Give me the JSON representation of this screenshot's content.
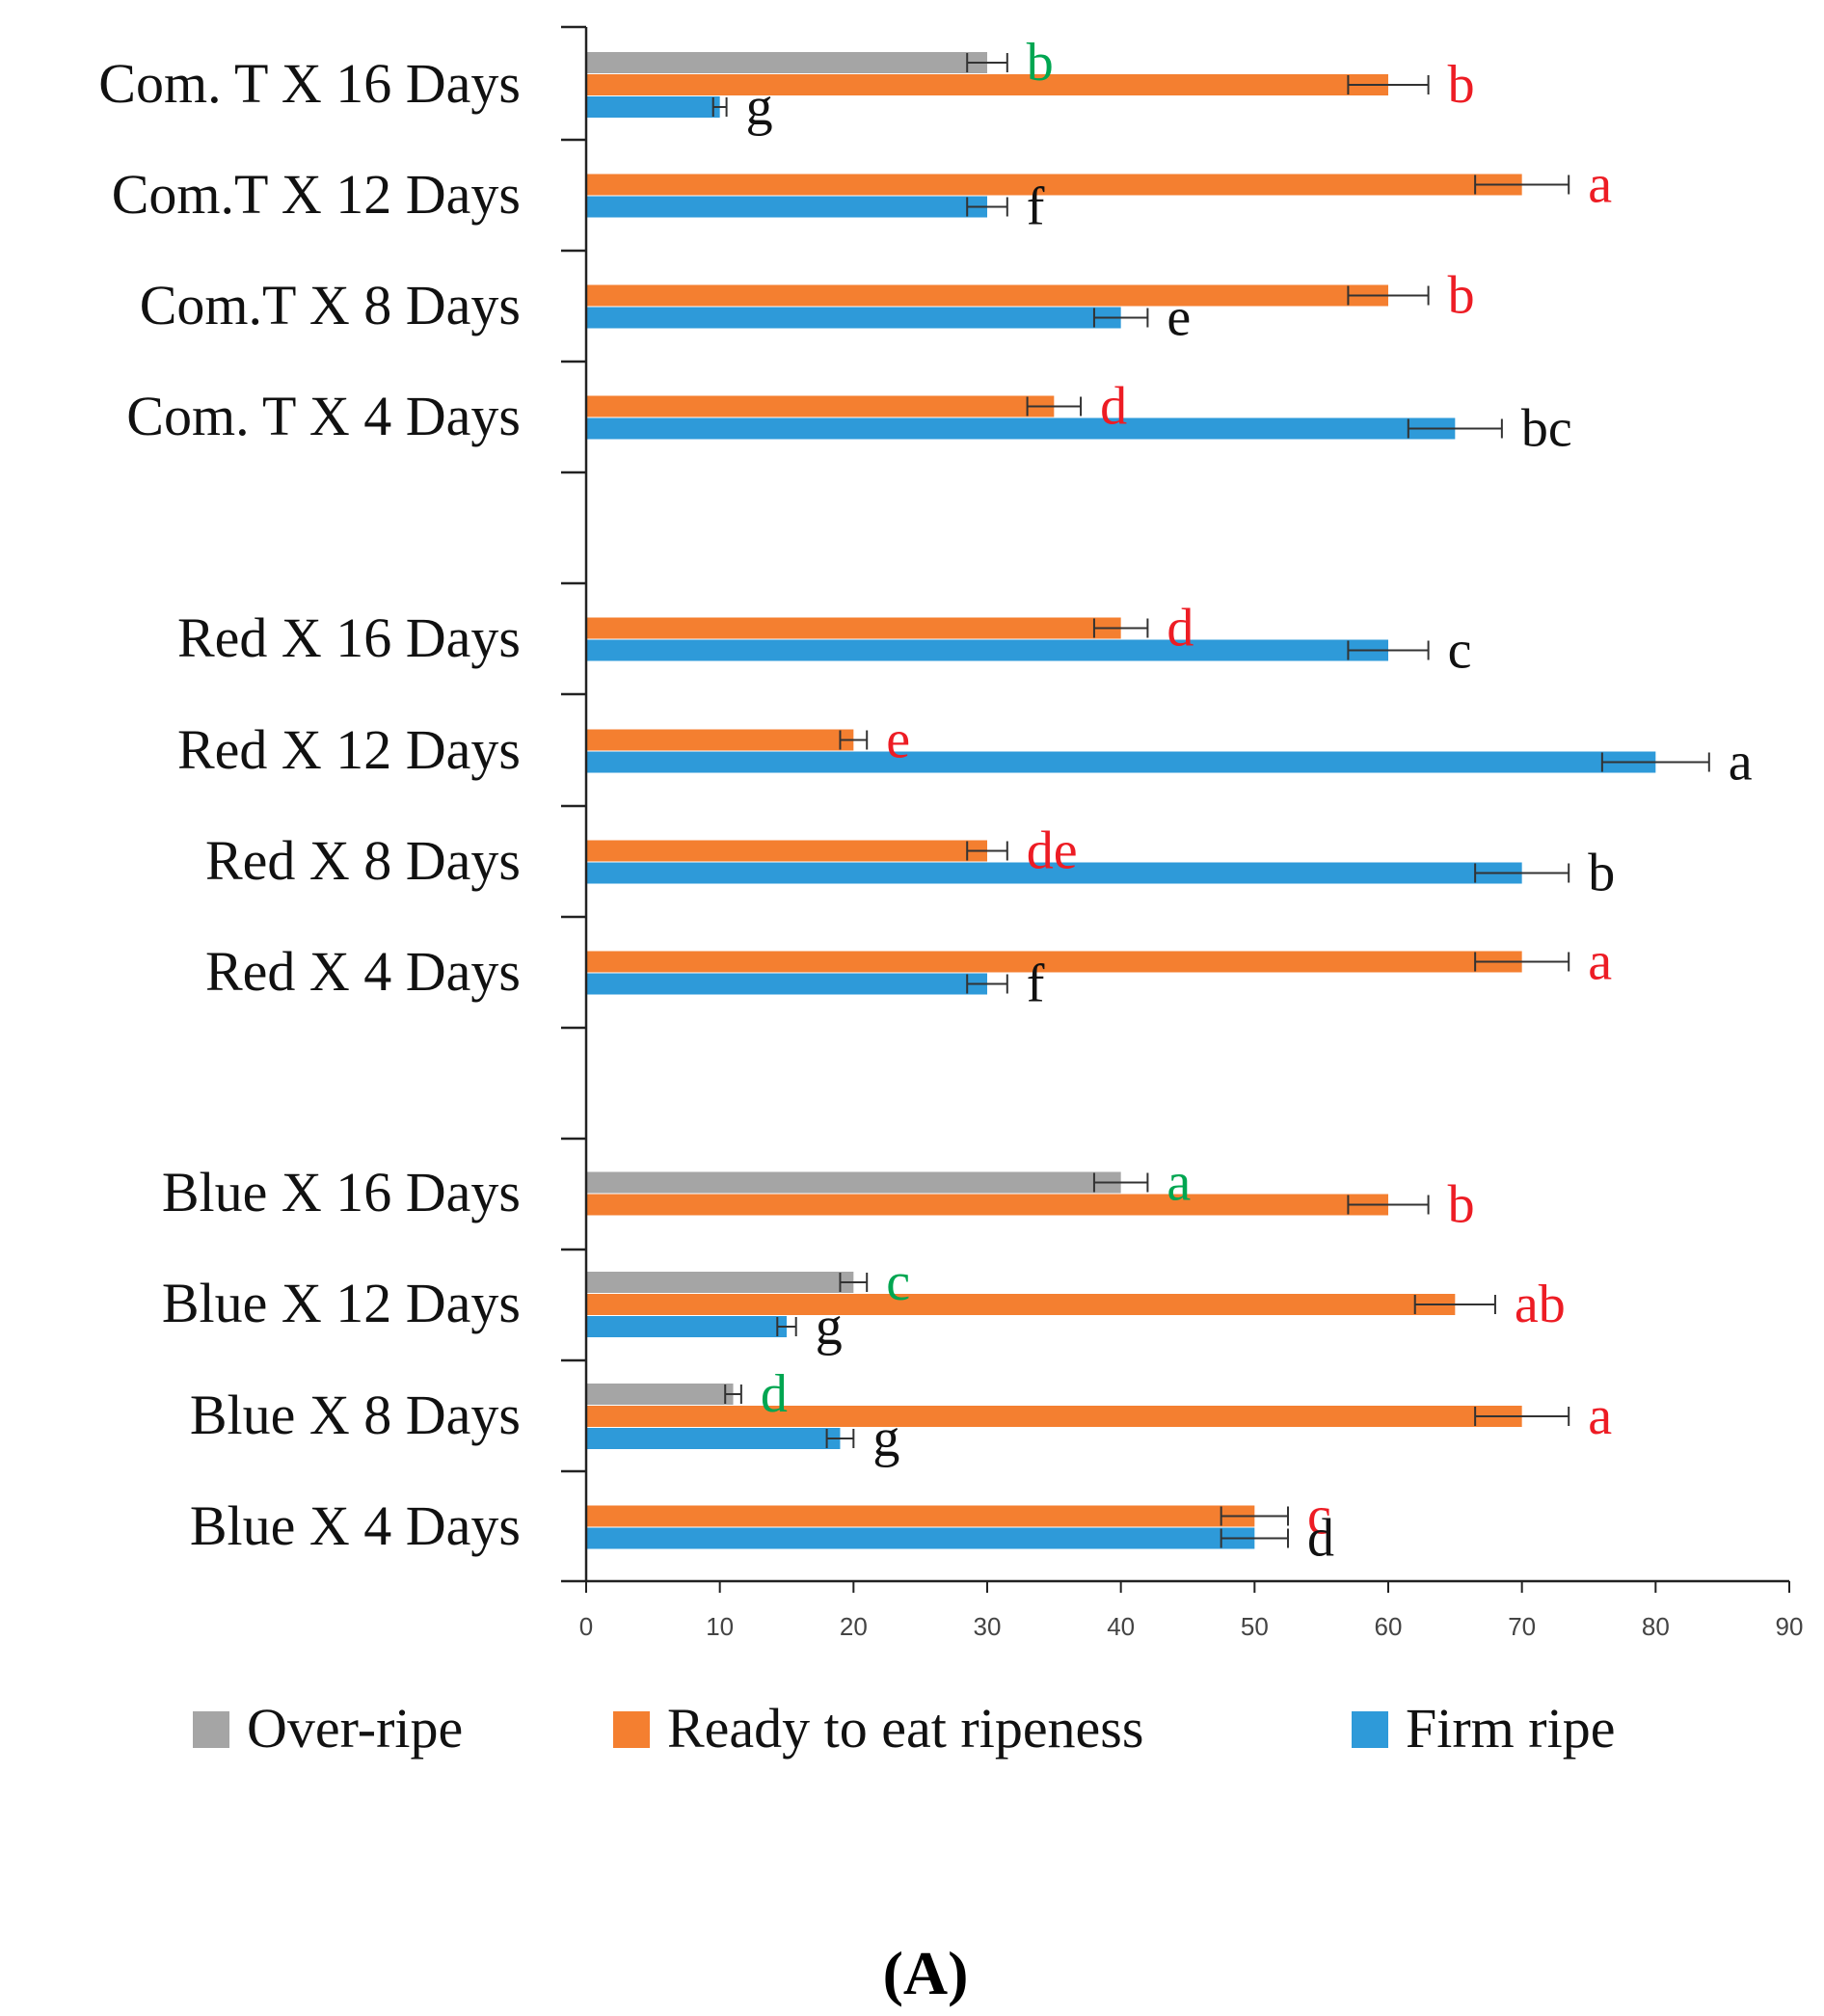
{
  "chart_data": {
    "type": "bar",
    "orientation": "horizontal",
    "categories": [
      "Com. T X 16 Days",
      "Com.T X 12 Days",
      "Com.T X 8 Days",
      "Com. T X 4 Days",
      "Red X 16 Days",
      "Red X 12 Days",
      "Red X 8 Days",
      "Red X 4 Days",
      "Blue X 16 Days",
      "Blue X 12 Days",
      "Blue X 8 Days",
      "Blue X 4 Days"
    ],
    "groups": [
      {
        "name": "Com. T",
        "categories": [
          0,
          1,
          2,
          3
        ]
      },
      {
        "name": "Red",
        "categories": [
          4,
          5,
          6,
          7
        ]
      },
      {
        "name": "Blue",
        "categories": [
          8,
          9,
          10,
          11
        ]
      }
    ],
    "series": [
      {
        "name": "Over-ripe",
        "color": "#A5A5A5",
        "letter_color": "#00A651",
        "values": [
          30,
          null,
          null,
          null,
          null,
          null,
          null,
          null,
          40,
          20,
          11,
          null
        ],
        "errors": [
          1.5,
          null,
          null,
          null,
          null,
          null,
          null,
          null,
          2,
          1,
          0.6,
          null
        ],
        "letters": [
          "b",
          "",
          "",
          "",
          "",
          "",
          "",
          "",
          "a",
          "c",
          "d",
          ""
        ]
      },
      {
        "name": "Ready to eat ripeness",
        "color": "#F47F30",
        "letter_color": "#ED1C24",
        "values": [
          60,
          70,
          60,
          35,
          40,
          20,
          30,
          70,
          60,
          65,
          70,
          50
        ],
        "errors": [
          3,
          3.5,
          3,
          2,
          2,
          1,
          1.5,
          3.5,
          3,
          3,
          3.5,
          2.5
        ],
        "letters": [
          "b",
          "a",
          "b",
          "d",
          "d",
          "e",
          "de",
          "a",
          "b",
          "ab",
          "a",
          "c"
        ]
      },
      {
        "name": "Firm ripe",
        "color": "#2E9AD9",
        "letter_color": "#111111",
        "values": [
          10,
          30,
          40,
          65,
          60,
          80,
          70,
          30,
          null,
          15,
          19,
          50
        ],
        "errors": [
          0.5,
          1.5,
          2,
          3.5,
          3,
          4,
          3.5,
          1.5,
          null,
          0.7,
          1,
          2.5
        ],
        "letters": [
          "g",
          "f",
          "e",
          "bc",
          "c",
          "a",
          "b",
          "f",
          "",
          "g",
          "g",
          "d"
        ]
      }
    ],
    "xlim": [
      0,
      90
    ],
    "xticks": [
      0,
      10,
      20,
      30,
      40,
      50,
      60,
      70,
      80,
      90
    ],
    "xlabel": "",
    "ylabel": "",
    "grid": false,
    "legend": {
      "placement": "bottom",
      "entries": [
        "Over-ripe",
        "Ready to eat ripeness",
        "Firm ripe"
      ]
    },
    "title": ""
  },
  "panel_label": "(A)"
}
